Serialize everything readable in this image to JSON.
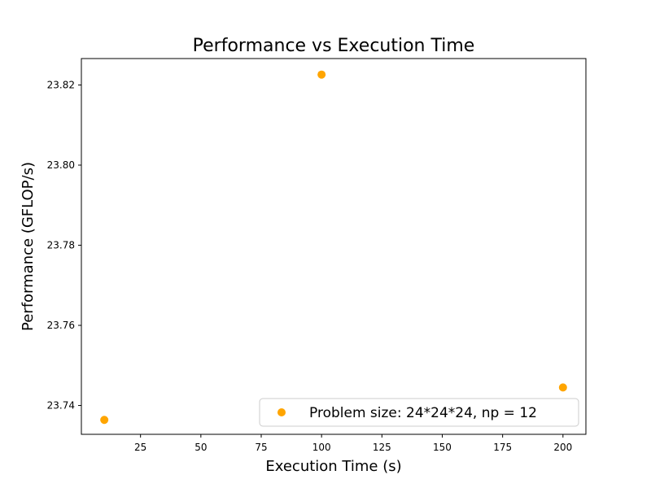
{
  "chart_data": {
    "type": "scatter",
    "title": "Performance vs Execution Time",
    "xlabel": "Execution Time (s)",
    "ylabel": "Performance (GFLOP/s)",
    "xlim": [
      0.5,
      209.5
    ],
    "ylim": [
      23.7328,
      23.8266
    ],
    "xticks": [
      25,
      50,
      75,
      100,
      125,
      150,
      175,
      200
    ],
    "yticks": [
      23.74,
      23.76,
      23.78,
      23.8,
      23.82
    ],
    "grid": false,
    "legend_position": "lower-right",
    "series": [
      {
        "name": "Problem size: 24*24*24, np = 12",
        "color": "#ffa500",
        "points": [
          {
            "x": 10,
            "y": 23.7364
          },
          {
            "x": 100,
            "y": 23.8226
          },
          {
            "x": 200,
            "y": 23.7445
          }
        ]
      }
    ]
  }
}
